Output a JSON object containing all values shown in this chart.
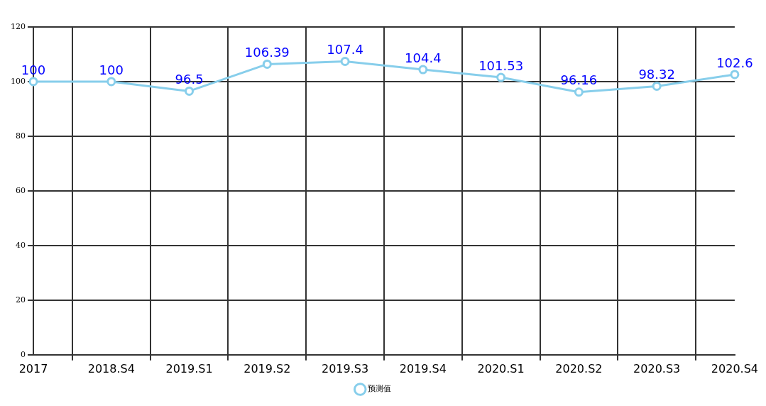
{
  "chart_data": {
    "type": "line",
    "categories": [
      "2017",
      "2018.S4",
      "2019.S1",
      "2019.S2",
      "2019.S3",
      "2019.S4",
      "2020.S1",
      "2020.S2",
      "2020.S3",
      "2020.S4"
    ],
    "series": [
      {
        "name": "预测值",
        "color": "#87ceeb",
        "values": [
          100,
          100,
          96.5,
          106.39,
          107.4,
          104.4,
          101.53,
          96.16,
          98.32,
          102.6
        ]
      }
    ],
    "ylim": [
      0,
      120
    ],
    "yticks": [
      0,
      20,
      40,
      60,
      80,
      100,
      120
    ],
    "grid": true,
    "legend": "bottom",
    "marker": "circle",
    "data_labels": true
  }
}
